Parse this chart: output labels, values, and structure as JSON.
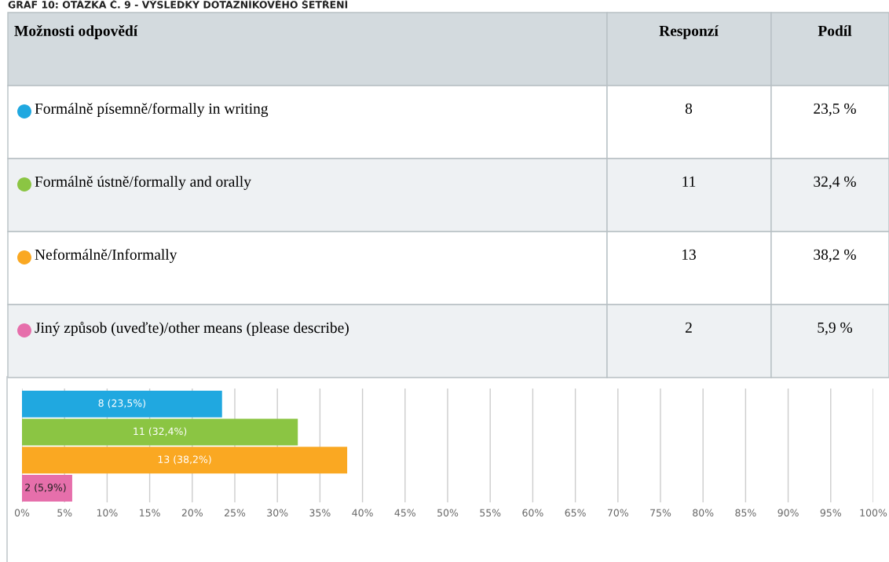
{
  "chart_data": {
    "type": "bar",
    "orientation": "horizontal",
    "title": "GRAF 10: OTÁZKA Č. 9 - VÝSLEDKY DOTAZNÍKOVÉHO ŠETŘENÍ",
    "categories": [
      null,
      null,
      null,
      null
    ],
    "values": [
      23.5,
      32.4,
      38.2,
      5.9
    ],
    "colors": [
      "#20a8e0",
      "#8bc543",
      "#faa822",
      "#e66fab"
    ],
    "value_labels": [
      "8 (23,5%)",
      "11 (32,4%)",
      "13 (38,2%)",
      "2 (5,9%)"
    ],
    "annotations": [
      "Možnosti odpovědí",
      "Responzí",
      "Podíl",
      "Formálně písemně/formally in writing",
      "8",
      "23,5 %",
      "Formálně ústně/formally and orally",
      "11",
      "32,4 %",
      "Neformálně/Informally",
      "13",
      "38,2 %",
      "Jiný způsob (uveďte)/other means (please describe)",
      "2",
      "5,9 %"
    ],
    "xlim": [
      0,
      100
    ],
    "xticks": [
      {
        "value": 0,
        "label": "0%"
      },
      {
        "value": 5,
        "label": "5%"
      },
      {
        "value": 10,
        "label": "10%"
      },
      {
        "value": 15,
        "label": "15%"
      },
      {
        "value": 20,
        "label": "20%"
      },
      {
        "value": 25,
        "label": "25%"
      },
      {
        "value": 30,
        "label": "30%"
      },
      {
        "value": 35,
        "label": "35%"
      },
      {
        "value": 40,
        "label": "40%"
      },
      {
        "value": 45,
        "label": "45%"
      },
      {
        "value": 50,
        "label": "50%"
      },
      {
        "value": 55,
        "label": "55%"
      },
      {
        "value": 60,
        "label": "60%"
      },
      {
        "value": 65,
        "label": "65%"
      },
      {
        "value": 70,
        "label": "70%"
      },
      {
        "value": 75,
        "label": "75%"
      },
      {
        "value": 80,
        "label": "80%"
      },
      {
        "value": 85,
        "label": "85%"
      },
      {
        "value": 90,
        "label": "90%"
      },
      {
        "value": 95,
        "label": "95%"
      },
      {
        "value": 100,
        "label": "100%"
      }
    ],
    "grid": "x"
  }
}
